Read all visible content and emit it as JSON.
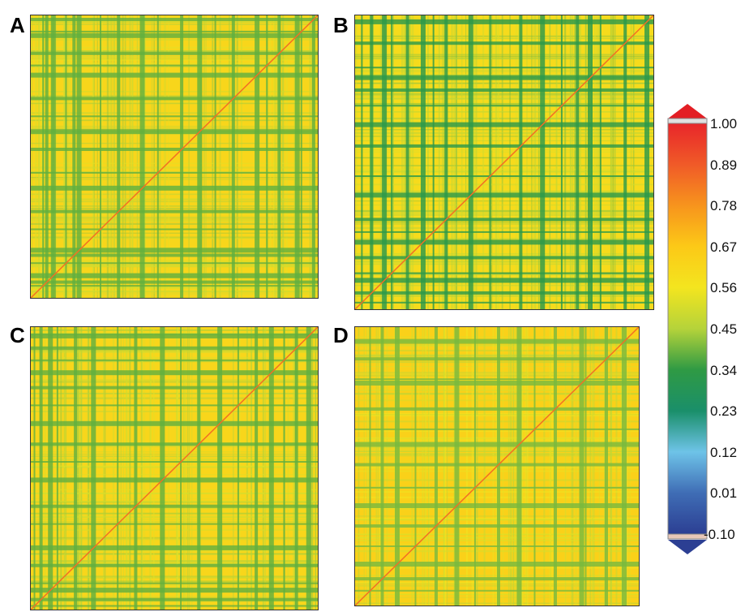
{
  "chart_data": [
    {
      "type": "heatmap",
      "panel": "A",
      "title": "",
      "xlabel": "",
      "ylabel": "",
      "value_range": [
        -0.1,
        1.0
      ],
      "background_value": 0.62,
      "diagonal_value": 0.85,
      "grid": false,
      "low_value_bands_fraction": [
        0.04,
        0.05,
        0.07,
        0.12,
        0.145,
        0.16,
        0.24,
        0.3,
        0.38,
        0.44,
        0.52,
        0.58,
        0.64,
        0.7,
        0.78,
        0.82,
        0.86,
        0.92,
        0.94,
        0.98
      ],
      "bands_value": 0.38
    },
    {
      "type": "heatmap",
      "panel": "B",
      "title": "",
      "xlabel": "",
      "ylabel": "",
      "value_range": [
        -0.1,
        1.0
      ],
      "background_value": 0.6,
      "diagonal_value": 0.85,
      "grid": false,
      "low_value_bands_fraction": [
        0.02,
        0.05,
        0.09,
        0.12,
        0.17,
        0.22,
        0.26,
        0.3,
        0.38,
        0.45,
        0.55,
        0.62,
        0.69,
        0.74,
        0.78,
        0.82,
        0.9,
        0.97
      ],
      "bands_value": 0.32
    },
    {
      "type": "heatmap",
      "panel": "C",
      "title": "",
      "xlabel": "",
      "ylabel": "",
      "value_range": [
        -0.1,
        1.0
      ],
      "background_value": 0.62,
      "diagonal_value": 0.85,
      "grid": false,
      "low_value_bands_fraction": [
        0.01,
        0.03,
        0.06,
        0.09,
        0.15,
        0.21,
        0.3,
        0.36,
        0.45,
        0.52,
        0.58,
        0.65,
        0.72,
        0.78,
        0.83,
        0.88,
        0.92,
        0.96
      ],
      "bands_value": 0.38
    },
    {
      "type": "heatmap",
      "panel": "D",
      "title": "",
      "xlabel": "",
      "ylabel": "",
      "value_range": [
        -0.1,
        1.0
      ],
      "background_value": 0.64,
      "diagonal_value": 0.85,
      "grid": false,
      "low_value_bands_fraction": [
        0.05,
        0.09,
        0.14,
        0.21,
        0.28,
        0.35,
        0.42,
        0.5,
        0.57,
        0.63,
        0.7,
        0.79,
        0.81,
        0.88,
        0.94
      ],
      "bands_value": 0.4
    }
  ],
  "panels": {
    "A": "A",
    "B": "B",
    "C": "C",
    "D": "D"
  },
  "colorbar": {
    "ticks": [
      "1.00",
      "0.89",
      "0.78",
      "0.67",
      "0.56",
      "0.45",
      "0.34",
      "0.23",
      "0.12",
      "0.01",
      "-0.10"
    ],
    "colors": [
      "#e8262a",
      "#f05a28",
      "#f7941d",
      "#fcc917",
      "#f3e51f",
      "#b5d33a",
      "#2f9a44",
      "#1a8f6a",
      "#6ec3e8",
      "#3f6db5",
      "#2c3f93"
    ],
    "arrow_colors": {
      "top": "#e31e24",
      "bottom": "#2c3f93"
    }
  }
}
